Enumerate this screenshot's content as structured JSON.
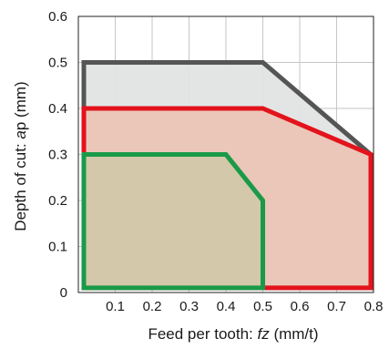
{
  "chart_data": {
    "type": "area",
    "title": "",
    "xlabel": "Feed per tooth: fz (mm/t)",
    "xlabel_prefix": "Feed per tooth: ",
    "xlabel_italic": "fz",
    "xlabel_suffix": " (mm/t)",
    "ylabel": "Depth of cut: ap (mm)",
    "ylabel_prefix": "Depth of cut: ",
    "ylabel_italic": "a",
    "ylabel_suffix": "p (mm)",
    "xlim": [
      0,
      0.8
    ],
    "ylim": [
      0,
      0.6
    ],
    "x_ticks": [
      0.1,
      0.2,
      0.3,
      0.4,
      0.5,
      0.6,
      0.7,
      0.8
    ],
    "x_tick_labels": [
      "0.1",
      "0.2",
      "0.3",
      "0.4",
      "0.5",
      "0.6",
      "0.7",
      "0.8"
    ],
    "y_ticks": [
      0,
      0.1,
      0.2,
      0.3,
      0.4,
      0.5,
      0.6
    ],
    "y_tick_labels": [
      "0",
      "0.1",
      "0.2",
      "0.3",
      "0.4",
      "0.5",
      "0.6"
    ],
    "grid": true,
    "series": [
      {
        "color": "#555555",
        "fill": "#e2e4e4",
        "points": [
          [
            0.0,
            0.01
          ],
          [
            0.0,
            0.5
          ],
          [
            0.5,
            0.5
          ],
          [
            0.8,
            0.3
          ],
          [
            0.8,
            0.01
          ]
        ]
      },
      {
        "color": "#e3131c",
        "fill": "#eac5b5",
        "points": [
          [
            0.0,
            0.01
          ],
          [
            0.0,
            0.4
          ],
          [
            0.5,
            0.4
          ],
          [
            0.8,
            0.3
          ],
          [
            0.8,
            0.01
          ]
        ]
      },
      {
        "color": "#1a9a48",
        "fill": "#d2c8a8",
        "points": [
          [
            0.0,
            0.01
          ],
          [
            0.0,
            0.3
          ],
          [
            0.4,
            0.3
          ],
          [
            0.5,
            0.2
          ],
          [
            0.5,
            0.01
          ]
        ]
      }
    ]
  }
}
